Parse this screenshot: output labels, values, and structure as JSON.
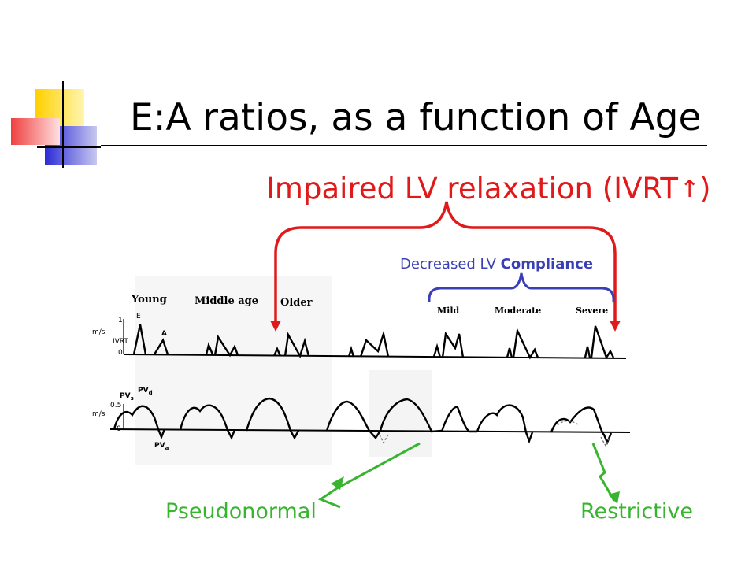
{
  "slide": {
    "title": "E:A ratios, as a function of Age",
    "relaxation_label": "Impaired LV relaxation (IVRT",
    "relaxation_arrow": "↑",
    "relaxation_close": ")",
    "compliance_prefix": "Decreased LV ",
    "compliance_bold": "Compliance",
    "pseudonormal_label": "Pseudonormal",
    "restrictive_label": "Restrictive"
  },
  "figure": {
    "groups": [
      "Young",
      "Middle age",
      "Older",
      "Mild",
      "Moderate",
      "Severe"
    ],
    "top_axis": {
      "unit": "m/s",
      "tick_top": "1",
      "tick_bottom": "0",
      "ivrt": "IVRT",
      "e": "E",
      "a": "A"
    },
    "bottom_axis": {
      "unit": "m/s",
      "tick_top": "0.5",
      "tick_bottom": "0",
      "pvs_main": "PV",
      "pvs_sub": "s",
      "pvd_main": "PV",
      "pvd_sub": "d",
      "pva_main": "PV",
      "pva_sub": "a"
    }
  },
  "colors": {
    "red": "#e01a1a",
    "blue": "#3b3fb6",
    "green": "#38b52e",
    "logo_yellow": "#ffd000",
    "logo_blue": "#2b2bd6",
    "logo_red": "#f04040"
  }
}
